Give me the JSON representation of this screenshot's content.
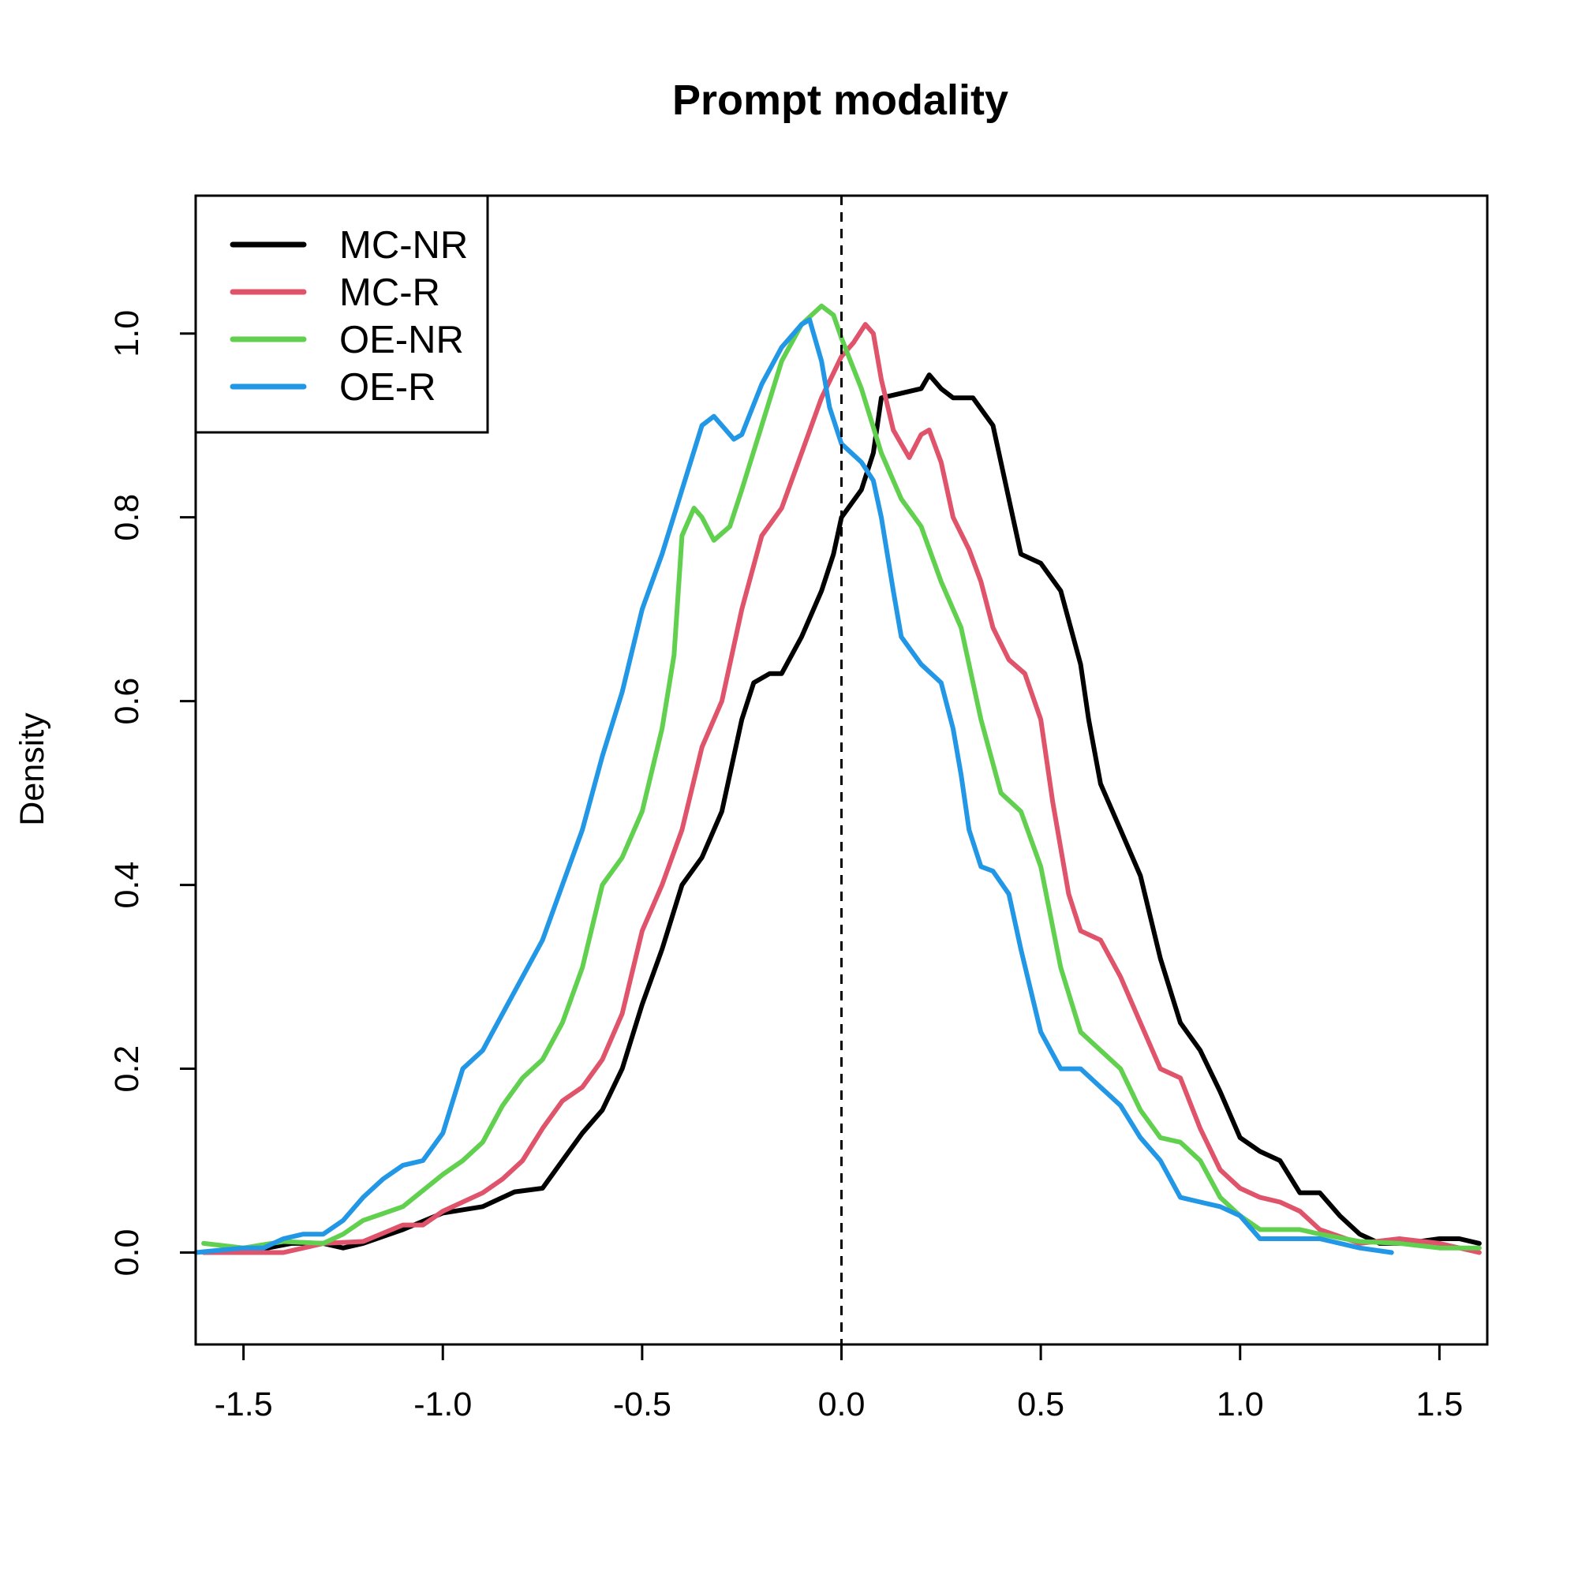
{
  "chart_data": {
    "type": "line",
    "title": "Prompt modality",
    "xlabel": "",
    "ylabel": "Density",
    "xlim": [
      -1.62,
      1.62
    ],
    "ylim": [
      -0.1,
      1.15
    ],
    "xticks": [
      -1.5,
      -1.0,
      -0.5,
      0.0,
      0.5,
      1.0,
      1.5
    ],
    "xtick_labels": [
      "-1.5",
      "-1.0",
      "-0.5",
      "0.0",
      "0.5",
      "1.0",
      "1.5"
    ],
    "yticks": [
      0.0,
      0.2,
      0.4,
      0.6,
      0.8,
      1.0
    ],
    "ytick_labels": [
      "0.0",
      "0.2",
      "0.4",
      "0.6",
      "0.8",
      "1.0"
    ],
    "reference_line": {
      "x": 0.0,
      "style": "dashed",
      "color": "#000000"
    },
    "grid": false,
    "legend": {
      "position": "top-left"
    },
    "series": [
      {
        "name": "MC-NR",
        "color": "#000000",
        "points": [
          [
            -1.5,
            0.0
          ],
          [
            -1.38,
            0.01
          ],
          [
            -1.3,
            0.01
          ],
          [
            -1.25,
            0.005
          ],
          [
            -1.2,
            0.01
          ],
          [
            -1.1,
            0.025
          ],
          [
            -1.0,
            0.043
          ],
          [
            -0.9,
            0.05
          ],
          [
            -0.82,
            0.066
          ],
          [
            -0.75,
            0.07
          ],
          [
            -0.7,
            0.1
          ],
          [
            -0.65,
            0.13
          ],
          [
            -0.6,
            0.155
          ],
          [
            -0.55,
            0.2
          ],
          [
            -0.5,
            0.27
          ],
          [
            -0.45,
            0.33
          ],
          [
            -0.4,
            0.4
          ],
          [
            -0.35,
            0.43
          ],
          [
            -0.3,
            0.48
          ],
          [
            -0.25,
            0.58
          ],
          [
            -0.22,
            0.62
          ],
          [
            -0.18,
            0.63
          ],
          [
            -0.15,
            0.63
          ],
          [
            -0.1,
            0.67
          ],
          [
            -0.05,
            0.72
          ],
          [
            -0.02,
            0.76
          ],
          [
            0.0,
            0.8
          ],
          [
            0.05,
            0.83
          ],
          [
            0.08,
            0.87
          ],
          [
            0.1,
            0.93
          ],
          [
            0.15,
            0.935
          ],
          [
            0.2,
            0.94
          ],
          [
            0.22,
            0.955
          ],
          [
            0.25,
            0.94
          ],
          [
            0.28,
            0.93
          ],
          [
            0.33,
            0.93
          ],
          [
            0.38,
            0.9
          ],
          [
            0.42,
            0.82
          ],
          [
            0.45,
            0.76
          ],
          [
            0.5,
            0.75
          ],
          [
            0.55,
            0.72
          ],
          [
            0.6,
            0.64
          ],
          [
            0.62,
            0.58
          ],
          [
            0.65,
            0.51
          ],
          [
            0.7,
            0.46
          ],
          [
            0.75,
            0.41
          ],
          [
            0.8,
            0.32
          ],
          [
            0.85,
            0.25
          ],
          [
            0.9,
            0.22
          ],
          [
            0.95,
            0.175
          ],
          [
            1.0,
            0.125
          ],
          [
            1.05,
            0.11
          ],
          [
            1.1,
            0.1
          ],
          [
            1.15,
            0.065
          ],
          [
            1.2,
            0.065
          ],
          [
            1.25,
            0.04
          ],
          [
            1.3,
            0.02
          ],
          [
            1.35,
            0.01
          ],
          [
            1.4,
            0.01
          ],
          [
            1.45,
            0.012
          ],
          [
            1.5,
            0.015
          ],
          [
            1.55,
            0.015
          ],
          [
            1.6,
            0.01
          ]
        ]
      },
      {
        "name": "MC-R",
        "color": "#DF536B",
        "points": [
          [
            -1.6,
            0.0
          ],
          [
            -1.5,
            0.0
          ],
          [
            -1.4,
            0.0
          ],
          [
            -1.3,
            0.01
          ],
          [
            -1.2,
            0.012
          ],
          [
            -1.1,
            0.03
          ],
          [
            -1.05,
            0.03
          ],
          [
            -1.0,
            0.045
          ],
          [
            -0.9,
            0.065
          ],
          [
            -0.85,
            0.08
          ],
          [
            -0.8,
            0.1
          ],
          [
            -0.75,
            0.135
          ],
          [
            -0.7,
            0.165
          ],
          [
            -0.65,
            0.18
          ],
          [
            -0.6,
            0.21
          ],
          [
            -0.55,
            0.26
          ],
          [
            -0.5,
            0.35
          ],
          [
            -0.45,
            0.4
          ],
          [
            -0.4,
            0.46
          ],
          [
            -0.35,
            0.55
          ],
          [
            -0.3,
            0.6
          ],
          [
            -0.25,
            0.7
          ],
          [
            -0.2,
            0.78
          ],
          [
            -0.15,
            0.81
          ],
          [
            -0.1,
            0.87
          ],
          [
            -0.05,
            0.93
          ],
          [
            0.0,
            0.975
          ],
          [
            0.03,
            0.99
          ],
          [
            0.06,
            1.01
          ],
          [
            0.08,
            1.0
          ],
          [
            0.1,
            0.95
          ],
          [
            0.13,
            0.895
          ],
          [
            0.17,
            0.865
          ],
          [
            0.2,
            0.89
          ],
          [
            0.22,
            0.895
          ],
          [
            0.25,
            0.86
          ],
          [
            0.28,
            0.8
          ],
          [
            0.32,
            0.765
          ],
          [
            0.35,
            0.73
          ],
          [
            0.38,
            0.68
          ],
          [
            0.42,
            0.645
          ],
          [
            0.46,
            0.63
          ],
          [
            0.5,
            0.58
          ],
          [
            0.53,
            0.49
          ],
          [
            0.57,
            0.39
          ],
          [
            0.6,
            0.35
          ],
          [
            0.65,
            0.34
          ],
          [
            0.7,
            0.3
          ],
          [
            0.75,
            0.25
          ],
          [
            0.8,
            0.2
          ],
          [
            0.85,
            0.19
          ],
          [
            0.9,
            0.135
          ],
          [
            0.95,
            0.09
          ],
          [
            1.0,
            0.07
          ],
          [
            1.05,
            0.06
          ],
          [
            1.1,
            0.055
          ],
          [
            1.15,
            0.045
          ],
          [
            1.2,
            0.025
          ],
          [
            1.3,
            0.01
          ],
          [
            1.4,
            0.015
          ],
          [
            1.5,
            0.01
          ],
          [
            1.6,
            0.0
          ]
        ]
      },
      {
        "name": "OE-NR",
        "color": "#61D04F",
        "points": [
          [
            -1.6,
            0.01
          ],
          [
            -1.5,
            0.005
          ],
          [
            -1.4,
            0.012
          ],
          [
            -1.3,
            0.01
          ],
          [
            -1.25,
            0.02
          ],
          [
            -1.2,
            0.035
          ],
          [
            -1.1,
            0.05
          ],
          [
            -1.0,
            0.085
          ],
          [
            -0.95,
            0.1
          ],
          [
            -0.9,
            0.12
          ],
          [
            -0.85,
            0.16
          ],
          [
            -0.8,
            0.19
          ],
          [
            -0.75,
            0.21
          ],
          [
            -0.7,
            0.25
          ],
          [
            -0.65,
            0.31
          ],
          [
            -0.6,
            0.4
          ],
          [
            -0.55,
            0.43
          ],
          [
            -0.5,
            0.48
          ],
          [
            -0.45,
            0.57
          ],
          [
            -0.42,
            0.65
          ],
          [
            -0.4,
            0.78
          ],
          [
            -0.37,
            0.81
          ],
          [
            -0.35,
            0.8
          ],
          [
            -0.32,
            0.775
          ],
          [
            -0.28,
            0.79
          ],
          [
            -0.25,
            0.83
          ],
          [
            -0.2,
            0.9
          ],
          [
            -0.15,
            0.97
          ],
          [
            -0.1,
            1.01
          ],
          [
            -0.05,
            1.03
          ],
          [
            -0.02,
            1.02
          ],
          [
            0.0,
            0.995
          ],
          [
            0.05,
            0.94
          ],
          [
            0.1,
            0.87
          ],
          [
            0.15,
            0.82
          ],
          [
            0.2,
            0.79
          ],
          [
            0.25,
            0.73
          ],
          [
            0.3,
            0.68
          ],
          [
            0.35,
            0.58
          ],
          [
            0.4,
            0.5
          ],
          [
            0.45,
            0.48
          ],
          [
            0.5,
            0.42
          ],
          [
            0.55,
            0.31
          ],
          [
            0.6,
            0.24
          ],
          [
            0.65,
            0.22
          ],
          [
            0.7,
            0.2
          ],
          [
            0.75,
            0.155
          ],
          [
            0.8,
            0.125
          ],
          [
            0.85,
            0.12
          ],
          [
            0.9,
            0.1
          ],
          [
            0.95,
            0.06
          ],
          [
            1.0,
            0.04
          ],
          [
            1.05,
            0.025
          ],
          [
            1.1,
            0.025
          ],
          [
            1.15,
            0.025
          ],
          [
            1.2,
            0.02
          ],
          [
            1.3,
            0.012
          ],
          [
            1.4,
            0.01
          ],
          [
            1.5,
            0.005
          ],
          [
            1.6,
            0.005
          ]
        ]
      },
      {
        "name": "OE-R",
        "color": "#2297E6",
        "points": [
          [
            -1.62,
            0.0
          ],
          [
            -1.5,
            0.005
          ],
          [
            -1.45,
            0.005
          ],
          [
            -1.4,
            0.015
          ],
          [
            -1.35,
            0.02
          ],
          [
            -1.3,
            0.02
          ],
          [
            -1.25,
            0.035
          ],
          [
            -1.2,
            0.06
          ],
          [
            -1.15,
            0.08
          ],
          [
            -1.1,
            0.095
          ],
          [
            -1.05,
            0.1
          ],
          [
            -1.0,
            0.13
          ],
          [
            -0.95,
            0.2
          ],
          [
            -0.9,
            0.22
          ],
          [
            -0.85,
            0.26
          ],
          [
            -0.8,
            0.3
          ],
          [
            -0.75,
            0.34
          ],
          [
            -0.7,
            0.4
          ],
          [
            -0.65,
            0.46
          ],
          [
            -0.6,
            0.54
          ],
          [
            -0.55,
            0.61
          ],
          [
            -0.5,
            0.7
          ],
          [
            -0.45,
            0.76
          ],
          [
            -0.4,
            0.83
          ],
          [
            -0.35,
            0.9
          ],
          [
            -0.32,
            0.91
          ],
          [
            -0.3,
            0.9
          ],
          [
            -0.27,
            0.885
          ],
          [
            -0.25,
            0.89
          ],
          [
            -0.2,
            0.945
          ],
          [
            -0.15,
            0.985
          ],
          [
            -0.1,
            1.01
          ],
          [
            -0.08,
            1.015
          ],
          [
            -0.05,
            0.97
          ],
          [
            -0.03,
            0.92
          ],
          [
            0.0,
            0.88
          ],
          [
            0.05,
            0.86
          ],
          [
            0.08,
            0.84
          ],
          [
            0.1,
            0.8
          ],
          [
            0.13,
            0.72
          ],
          [
            0.15,
            0.67
          ],
          [
            0.2,
            0.64
          ],
          [
            0.25,
            0.62
          ],
          [
            0.28,
            0.57
          ],
          [
            0.3,
            0.52
          ],
          [
            0.32,
            0.46
          ],
          [
            0.35,
            0.42
          ],
          [
            0.38,
            0.415
          ],
          [
            0.42,
            0.39
          ],
          [
            0.45,
            0.33
          ],
          [
            0.5,
            0.24
          ],
          [
            0.55,
            0.2
          ],
          [
            0.6,
            0.2
          ],
          [
            0.65,
            0.18
          ],
          [
            0.7,
            0.16
          ],
          [
            0.75,
            0.125
          ],
          [
            0.8,
            0.1
          ],
          [
            0.85,
            0.06
          ],
          [
            0.9,
            0.055
          ],
          [
            0.95,
            0.05
          ],
          [
            1.0,
            0.04
          ],
          [
            1.05,
            0.015
          ],
          [
            1.1,
            0.015
          ],
          [
            1.2,
            0.015
          ],
          [
            1.3,
            0.005
          ],
          [
            1.38,
            0.0
          ]
        ]
      }
    ]
  }
}
